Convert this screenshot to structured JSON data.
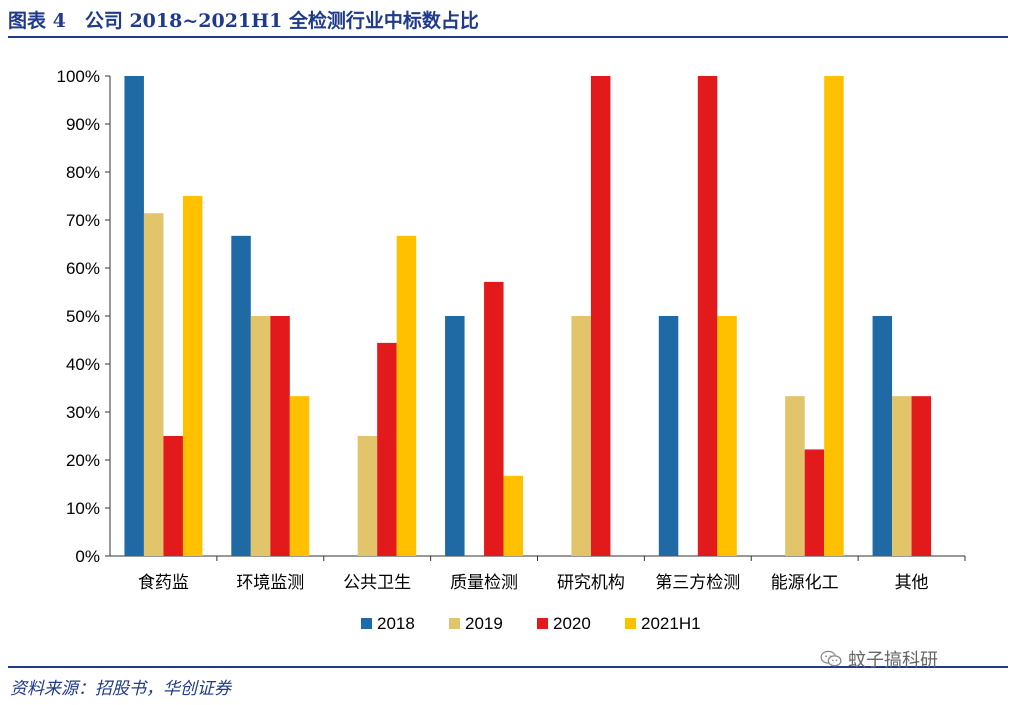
{
  "header": {
    "title": "图表 4　公司 2018~2021H1 全检测行业中标数占比"
  },
  "footer": {
    "source": "资料来源：招股书，华创证券",
    "watermark": "蚊子搞科研",
    "watermark_icon": "wechat-icon"
  },
  "chart_data": {
    "type": "bar",
    "categories": [
      "食药监",
      "环境监测",
      "公共卫生",
      "质量检测",
      "研究机构",
      "第三方检测",
      "能源化工",
      "其他"
    ],
    "series": [
      {
        "name": "2018",
        "color": "#1f6aa5",
        "values": [
          100,
          66.7,
          0,
          50,
          0,
          50,
          0,
          50
        ]
      },
      {
        "name": "2019",
        "color": "#e2c46a",
        "values": [
          71.4,
          50,
          25,
          0,
          50,
          0,
          33.3,
          33.3
        ]
      },
      {
        "name": "2020",
        "color": "#e31a1c",
        "values": [
          25,
          50,
          44.4,
          57.1,
          100,
          100,
          22.2,
          33.3
        ]
      },
      {
        "name": "2021H1",
        "color": "#ffc000",
        "values": [
          75,
          33.3,
          66.7,
          16.7,
          0,
          50,
          100,
          0
        ]
      }
    ],
    "ylim": [
      0,
      100
    ],
    "yticks": [
      "0%",
      "10%",
      "20%",
      "30%",
      "40%",
      "50%",
      "60%",
      "70%",
      "80%",
      "90%",
      "100%"
    ],
    "grid": false,
    "legend": "bottom"
  }
}
